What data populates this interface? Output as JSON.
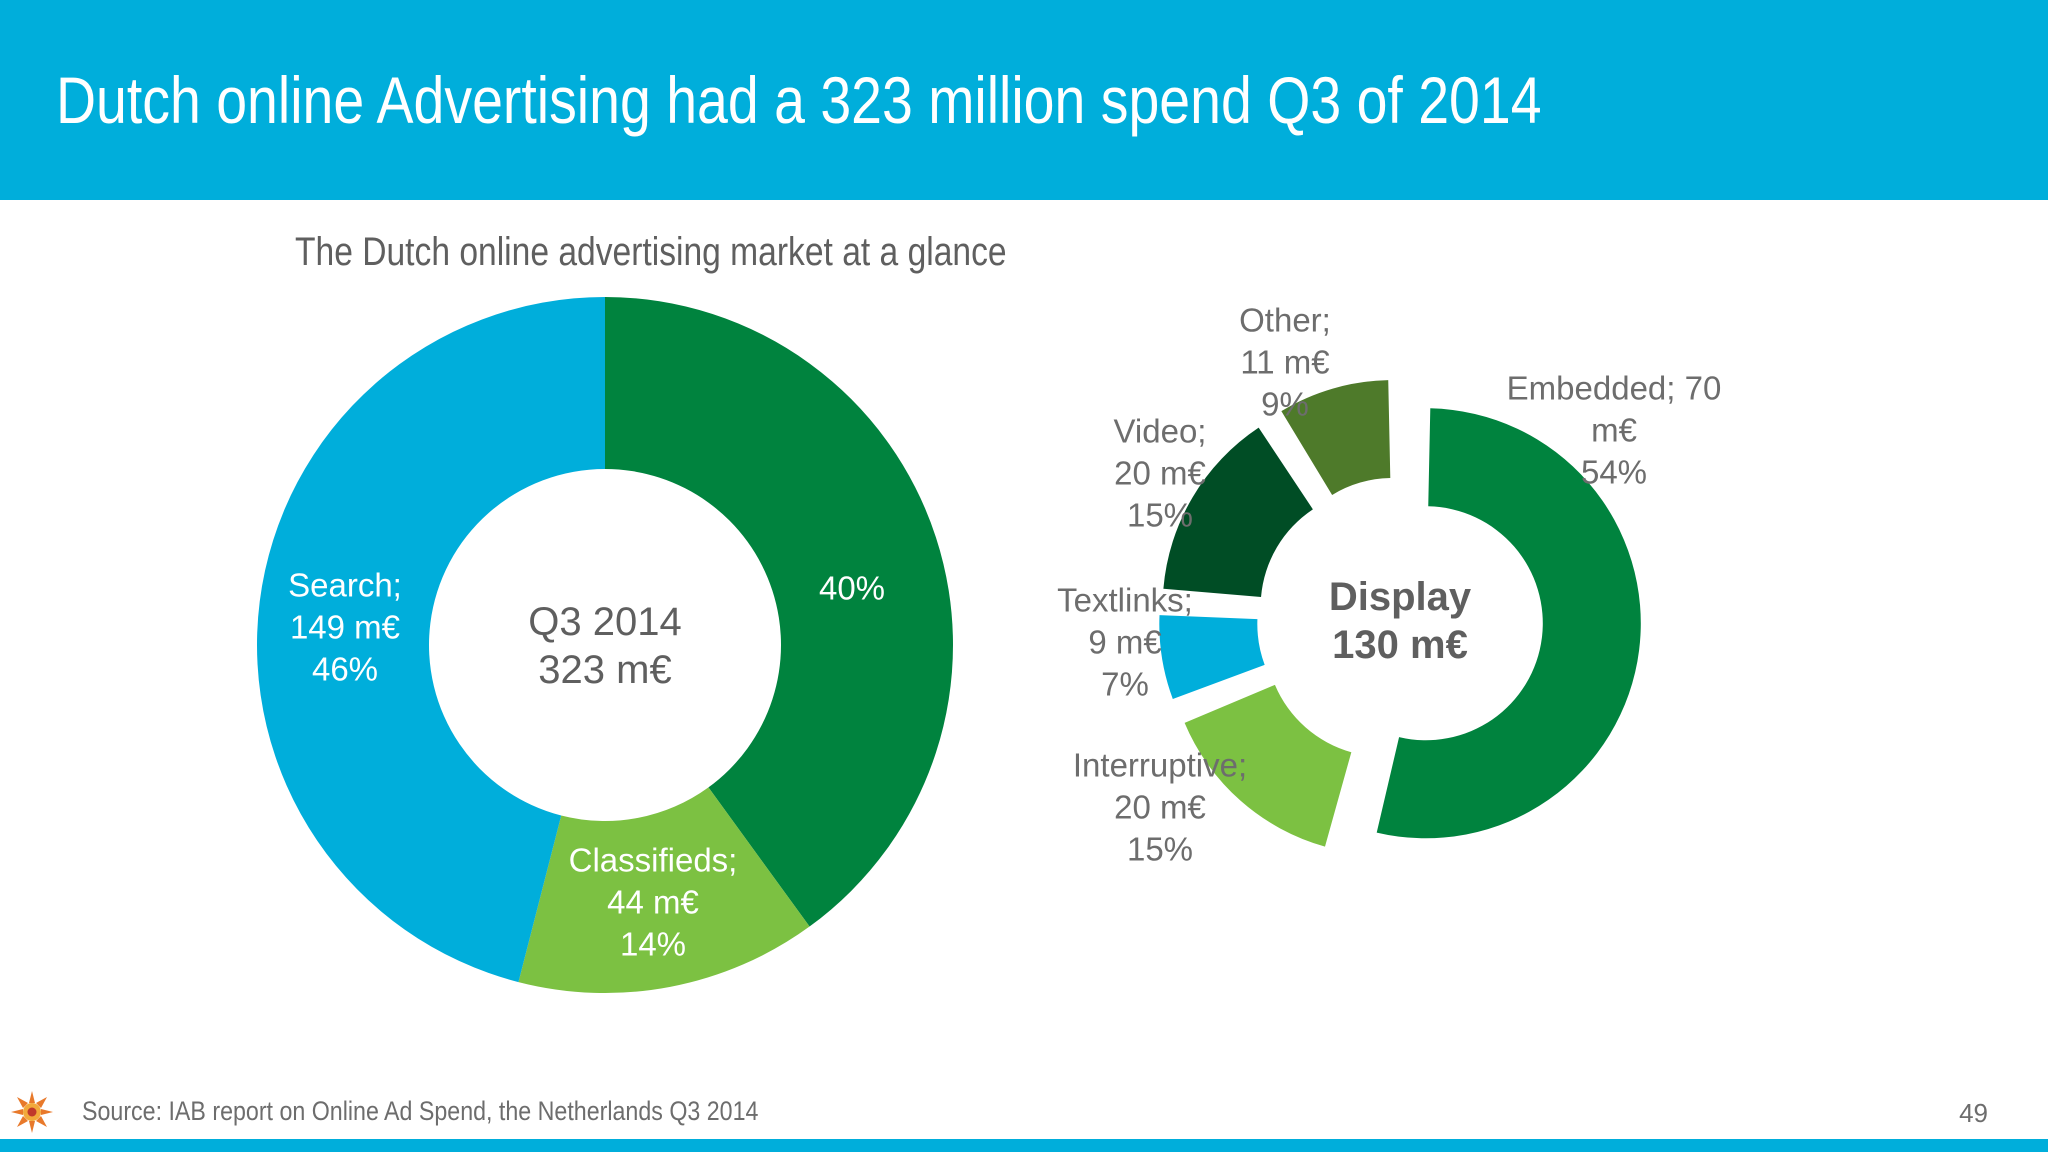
{
  "slide": {
    "title": "Dutch online Advertising had a 323 million spend Q3 of 2014",
    "subtitle": "The Dutch online advertising market at a glance",
    "source": "Source: IAB report on Online Ad Spend, the Netherlands Q3 2014",
    "page_number": "49"
  },
  "colors": {
    "header": "#00AEDB",
    "search": "#00AEDB",
    "display": "#00833E",
    "classifieds": "#7CC142",
    "embedded": "#00833E",
    "other": "#4E7A2A",
    "video": "#004D25",
    "textlinks": "#00AEDB",
    "interruptive": "#7CC142",
    "label_light": "#ffffff",
    "label_dark": "#6d6d6d",
    "center_text": "#5f5f5f"
  },
  "chart_data": [
    {
      "type": "pie",
      "variant": "donut",
      "center_label": [
        "Q3 2014",
        "323 m€"
      ],
      "slices": [
        {
          "key": "display",
          "label": [
            "40%"
          ],
          "value": 130,
          "percent": 40
        },
        {
          "key": "classifieds",
          "label": [
            "Classifieds;",
            "44 m€",
            "14%"
          ],
          "value": 44,
          "percent": 14
        },
        {
          "key": "search",
          "label": [
            "Search;",
            "149 m€",
            "46%"
          ],
          "value": 149,
          "percent": 46
        }
      ]
    },
    {
      "type": "pie",
      "variant": "donut-exploded",
      "center_label": [
        "Display",
        "130 m€"
      ],
      "slices": [
        {
          "key": "embedded",
          "label": [
            "Embedded; 70",
            "m€",
            "54%"
          ],
          "value": 70,
          "percent": 54
        },
        {
          "key": "interruptive",
          "label": [
            "Interruptive;",
            "20 m€",
            "15%"
          ],
          "value": 20,
          "percent": 15
        },
        {
          "key": "textlinks",
          "label": [
            "Textlinks;",
            "9 m€",
            "7%"
          ],
          "value": 9,
          "percent": 7
        },
        {
          "key": "video",
          "label": [
            "Video;",
            "20 m€",
            "15%"
          ],
          "value": 20,
          "percent": 15
        },
        {
          "key": "other",
          "label": [
            "Other;",
            "11 m€",
            "9%"
          ],
          "value": 11,
          "percent": 9
        }
      ]
    }
  ]
}
